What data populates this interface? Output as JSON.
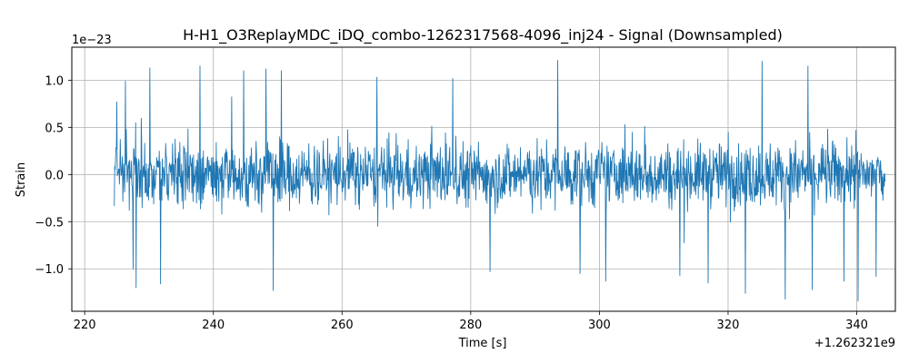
{
  "chart_data": {
    "type": "line",
    "title": "H-H1_O3ReplayMDC_iDQ_combo-1262317568-4096_inj24 - Signal (Downsampled)",
    "xlabel": "Time [s]",
    "ylabel": "Strain",
    "x_offset_label": "+1.262321e9",
    "y_scale_label": "1e−23",
    "xlim": [
      218,
      346
    ],
    "ylim": [
      -1.45,
      1.35
    ],
    "x_ticks": [
      220,
      240,
      260,
      280,
      300,
      320,
      340
    ],
    "y_ticks": [
      -1.0,
      -0.5,
      0.0,
      0.5,
      1.0
    ],
    "x_tick_labels": [
      "220",
      "240",
      "260",
      "280",
      "300",
      "320",
      "340"
    ],
    "y_tick_labels": [
      "−1.0",
      "−0.5",
      "0.0",
      "0.5",
      "1.0"
    ],
    "grid": true,
    "series": [
      {
        "color": "#1f77b4",
        "x_range": [
          224.6,
          344.4
        ],
        "samples": 1800,
        "y_bulk": 0.42,
        "y_peak": 1.32,
        "peaks": [
          {
            "x": 225.0,
            "y": 0.77
          },
          {
            "x": 226.3,
            "y": 0.99
          },
          {
            "x": 227.5,
            "y": -1.0
          },
          {
            "x": 228.0,
            "y": -1.2
          },
          {
            "x": 230.1,
            "y": 1.13
          },
          {
            "x": 231.8,
            "y": -1.16
          },
          {
            "x": 237.9,
            "y": 1.15
          },
          {
            "x": 244.7,
            "y": 1.1
          },
          {
            "x": 248.2,
            "y": 1.12
          },
          {
            "x": 249.3,
            "y": -1.23
          },
          {
            "x": 250.6,
            "y": 1.1
          },
          {
            "x": 265.4,
            "y": 1.03
          },
          {
            "x": 277.2,
            "y": 1.02
          },
          {
            "x": 283.0,
            "y": -1.03
          },
          {
            "x": 293.5,
            "y": 1.21
          },
          {
            "x": 297.0,
            "y": -1.05
          },
          {
            "x": 301.0,
            "y": -1.13
          },
          {
            "x": 312.5,
            "y": -1.07
          },
          {
            "x": 316.9,
            "y": -1.15
          },
          {
            "x": 322.7,
            "y": -1.26
          },
          {
            "x": 325.3,
            "y": 1.2
          },
          {
            "x": 328.9,
            "y": -1.32
          },
          {
            "x": 332.4,
            "y": 1.15
          },
          {
            "x": 333.1,
            "y": -1.22
          },
          {
            "x": 338.0,
            "y": -1.13
          },
          {
            "x": 340.2,
            "y": -1.34
          },
          {
            "x": 343.0,
            "y": -1.08
          }
        ]
      }
    ]
  }
}
